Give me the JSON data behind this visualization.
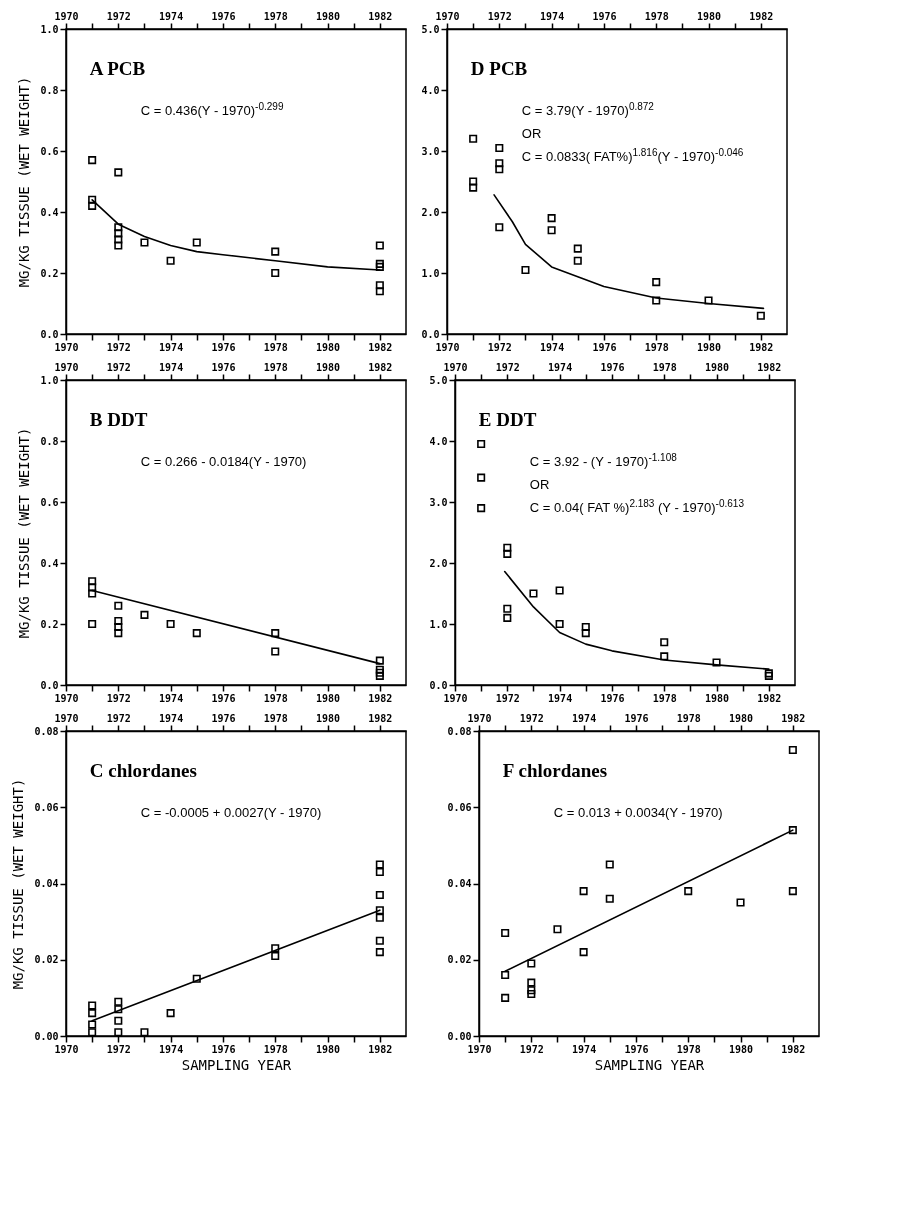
{
  "chart_data": [
    {
      "type": "scatter",
      "title": "A  PCB",
      "ylabel": "MG/KG TISSUE (WET WEIGHT)",
      "annotations": [
        "C = 0.436(Y - 1970)$^{-0.299}$"
      ],
      "xlim": [
        1970,
        1983
      ],
      "xticks": [
        1970,
        {
          "value": 1971,
          "label": null
        },
        1972,
        {
          "value": 1973,
          "label": null
        },
        1974,
        {
          "value": 1975,
          "label": null
        },
        1976,
        {
          "value": 1977,
          "label": null
        },
        1978,
        {
          "value": 1979,
          "label": null
        },
        1980,
        {
          "value": 1981,
          "label": null
        },
        1982
      ],
      "x2lim": [
        1970,
        1983
      ],
      "x2ticks": [
        1970,
        {
          "value": 1971,
          "label": null
        },
        1972,
        {
          "value": 1973,
          "label": null
        },
        1974,
        {
          "value": 1975,
          "label": null
        },
        1976,
        {
          "value": 1977,
          "label": null
        },
        1978,
        {
          "value": 1979,
          "label": null
        },
        1980,
        {
          "value": 1981,
          "label": null
        },
        1982
      ],
      "ylim": [
        0,
        1
      ],
      "yticks": [
        {
          "value": 0,
          "label": "0.0"
        },
        0.2,
        0.4,
        0.6,
        0.8,
        {
          "value": 1,
          "label": "1.0"
        }
      ],
      "series": [
        {
          "marker": "square",
          "color": "#000000",
          "x": [
            1971,
            1971,
            1971,
            1972,
            1972,
            1972,
            1972,
            1972,
            1973,
            1974,
            1975,
            1978,
            1978,
            1982,
            1982,
            1982,
            1982,
            1982
          ],
          "values": [
            0.57,
            0.44,
            0.42,
            0.53,
            0.35,
            0.33,
            0.31,
            0.29,
            0.3,
            0.24,
            0.3,
            0.27,
            0.2,
            0.29,
            0.23,
            0.22,
            0.16,
            0.14
          ]
        },
        {
          "type": "line",
          "color": "#000000",
          "x": [
            1971,
            1972,
            1973,
            1974,
            1975,
            1976,
            1978,
            1980,
            1982
          ],
          "values": [
            0.44,
            0.36,
            0.32,
            0.29,
            0.27,
            0.26,
            0.24,
            0.22,
            0.21
          ]
        }
      ]
    },
    {
      "type": "scatter",
      "title": "D   PCB",
      "annotations": [
        "C = 3.79(Y - 1970)$^{0.872}$",
        "OR",
        "C = 0.0833( FAT%)$^{1.816}$(Y - 1970)$^{-0.046}$"
      ],
      "xlim": [
        1970,
        1983
      ],
      "xticks": [
        1970,
        {
          "value": 1971,
          "label": null
        },
        1972,
        {
          "value": 1973,
          "label": null
        },
        1974,
        {
          "value": 1975,
          "label": null
        },
        1976,
        {
          "value": 1977,
          "label": null
        },
        1978,
        {
          "value": 1979,
          "label": null
        },
        1980,
        {
          "value": 1981,
          "label": null
        },
        1982
      ],
      "x2lim": [
        1970,
        1983
      ],
      "x2ticks": [
        1970,
        {
          "value": 1971,
          "label": null
        },
        1972,
        {
          "value": 1973,
          "label": null
        },
        1974,
        {
          "value": 1975,
          "label": null
        },
        1976,
        {
          "value": 1977,
          "label": null
        },
        1978,
        {
          "value": 1979,
          "label": null
        },
        1980,
        {
          "value": 1981,
          "label": null
        },
        1982
      ],
      "ylim": [
        0,
        5
      ],
      "yticks": [
        {
          "value": 0,
          "label": "0.0"
        },
        {
          "value": 1,
          "label": "1.0"
        },
        {
          "value": 2,
          "label": "2.0"
        },
        {
          "value": 3,
          "label": "3.0"
        },
        {
          "value": 4,
          "label": "4.0"
        },
        {
          "value": 5,
          "label": "5.0"
        }
      ],
      "series": [
        {
          "marker": "square",
          "color": "#000000",
          "x": [
            1971,
            1971,
            1971,
            1972,
            1972,
            1972,
            1972,
            1973,
            1974,
            1974,
            1975,
            1975,
            1978,
            1978,
            1980,
            1982
          ],
          "values": [
            3.2,
            2.5,
            2.4,
            3.05,
            2.8,
            2.7,
            1.75,
            1.05,
            1.9,
            1.7,
            1.4,
            1.2,
            0.85,
            0.55,
            0.55,
            0.3
          ]
        },
        {
          "type": "line",
          "color": "#000000",
          "x": [
            1971.8,
            1972.5,
            1973,
            1974,
            1975,
            1976,
            1978,
            1980,
            1982.1
          ],
          "values": [
            2.28,
            1.84,
            1.47,
            1.1,
            0.94,
            0.78,
            0.59,
            0.5,
            0.42
          ]
        }
      ]
    },
    {
      "type": "scatter",
      "title": "B   DDT",
      "ylabel": "MG/KG TISSUE (WET WEIGHT)",
      "annotations": [
        "C = 0.266 - 0.0184(Y - 1970)"
      ],
      "xlim": [
        1970,
        1983
      ],
      "xticks": [
        1970,
        {
          "value": 1971,
          "label": null
        },
        1972,
        {
          "value": 1973,
          "label": null
        },
        1974,
        {
          "value": 1975,
          "label": null
        },
        1976,
        {
          "value": 1977,
          "label": null
        },
        1978,
        {
          "value": 1979,
          "label": null
        },
        1980,
        {
          "value": 1981,
          "label": null
        },
        1982
      ],
      "x2lim": [
        1970,
        1983
      ],
      "x2ticks": [
        1970,
        {
          "value": 1971,
          "label": null
        },
        1972,
        {
          "value": 1973,
          "label": null
        },
        1974,
        {
          "value": 1975,
          "label": null
        },
        1976,
        {
          "value": 1977,
          "label": null
        },
        1978,
        {
          "value": 1979,
          "label": null
        },
        1980,
        {
          "value": 1981,
          "label": null
        },
        1982
      ],
      "ylim": [
        0,
        1
      ],
      "yticks": [
        {
          "value": 0,
          "label": "0.0"
        },
        0.2,
        0.4,
        0.6,
        0.8,
        {
          "value": 1,
          "label": "1.0"
        }
      ],
      "series": [
        {
          "marker": "square",
          "color": "#000000",
          "x": [
            1971,
            1971,
            1971,
            1971,
            1972,
            1972,
            1972,
            1972,
            1973,
            1974,
            1975,
            1978,
            1978,
            1982,
            1982,
            1982,
            1982
          ],
          "values": [
            0.34,
            0.32,
            0.3,
            0.2,
            0.26,
            0.21,
            0.19,
            0.17,
            0.23,
            0.2,
            0.17,
            0.17,
            0.11,
            0.08,
            0.05,
            0.04,
            0.03
          ]
        },
        {
          "type": "line",
          "color": "#000000",
          "x": [
            1971,
            1982
          ],
          "values": [
            0.31,
            0.07
          ]
        }
      ]
    },
    {
      "type": "scatter",
      "title": "E   DDT",
      "annotations": [
        "C = 3.92 - (Y - 1970)$^{-1.108}$",
        "OR",
        "C = 0.04( FAT %)$^{2.183}$ (Y - 1970)$^{-0.613}$"
      ],
      "xlim": [
        1970,
        1983
      ],
      "xticks": [
        1970,
        {
          "value": 1971,
          "label": null
        },
        1972,
        {
          "value": 1973,
          "label": null
        },
        1974,
        {
          "value": 1975,
          "label": null
        },
        1976,
        {
          "value": 1977,
          "label": null
        },
        1978,
        {
          "value": 1979,
          "label": null
        },
        1980,
        {
          "value": 1981,
          "label": null
        },
        1982
      ],
      "x2lim": [
        1970,
        1983
      ],
      "x2ticks": [
        1970,
        {
          "value": 1971,
          "label": null
        },
        1972,
        {
          "value": 1973,
          "label": null
        },
        1974,
        {
          "value": 1975,
          "label": null
        },
        1976,
        {
          "value": 1977,
          "label": null
        },
        1978,
        {
          "value": 1979,
          "label": null
        },
        1980,
        {
          "value": 1981,
          "label": null
        },
        1982
      ],
      "ylim": [
        0,
        5
      ],
      "yticks": [
        {
          "value": 0,
          "label": "0.0"
        },
        {
          "value": 1,
          "label": "1.0"
        },
        {
          "value": 2,
          "label": "2.0"
        },
        {
          "value": 3,
          "label": "3.0"
        },
        {
          "value": 4,
          "label": "4.0"
        },
        {
          "value": 5,
          "label": "5.0"
        }
      ],
      "series": [
        {
          "marker": "square",
          "color": "#000000",
          "x": [
            1971,
            1971,
            1971,
            1972,
            1972,
            1972,
            1972,
            1973,
            1974,
            1974,
            1975,
            1975,
            1978,
            1978,
            1980,
            1982,
            1982
          ],
          "values": [
            3.95,
            3.4,
            2.9,
            2.25,
            2.15,
            1.25,
            1.1,
            1.5,
            1.55,
            1.0,
            0.95,
            0.85,
            0.7,
            0.47,
            0.37,
            0.19,
            0.15
          ]
        },
        {
          "type": "line",
          "color": "#000000",
          "x": [
            1971.9,
            1973,
            1974,
            1975,
            1976,
            1978,
            1980,
            1982
          ],
          "values": [
            1.86,
            1.28,
            0.86,
            0.67,
            0.56,
            0.41,
            0.33,
            0.26
          ]
        }
      ]
    },
    {
      "type": "scatter",
      "title": "C  chlordanes",
      "ylabel": "MG/KG TISSUE (WET WEIGHT)",
      "xlabel": "SAMPLING YEAR",
      "annotations": [
        "C = -0.0005 + 0.0027(Y - 1970)"
      ],
      "xlim": [
        1970,
        1983
      ],
      "xticks": [
        1970,
        {
          "value": 1971,
          "label": null
        },
        1972,
        {
          "value": 1973,
          "label": null
        },
        1974,
        {
          "value": 1975,
          "label": null
        },
        1976,
        {
          "value": 1977,
          "label": null
        },
        1978,
        {
          "value": 1979,
          "label": null
        },
        1980,
        {
          "value": 1981,
          "label": null
        },
        1982
      ],
      "x2lim": [
        1970,
        1983
      ],
      "x2ticks": [
        1970,
        {
          "value": 1971,
          "label": null
        },
        1972,
        {
          "value": 1973,
          "label": null
        },
        1974,
        {
          "value": 1975,
          "label": null
        },
        1976,
        {
          "value": 1977,
          "label": null
        },
        1978,
        {
          "value": 1979,
          "label": null
        },
        1980,
        {
          "value": 1981,
          "label": null
        },
        1982
      ],
      "ylim": [
        0,
        0.08
      ],
      "yticks": [
        {
          "value": 0,
          "label": "0.00"
        },
        0.02,
        0.04,
        0.06,
        0.08
      ],
      "series": [
        {
          "marker": "square",
          "color": "#000000",
          "x": [
            1971,
            1971,
            1971,
            1971,
            1972,
            1972,
            1972,
            1972,
            1973,
            1974,
            1975,
            1978,
            1978,
            1982,
            1982,
            1982,
            1982,
            1982,
            1982,
            1982
          ],
          "values": [
            0.008,
            0.006,
            0.003,
            0.001,
            0.009,
            0.007,
            0.004,
            0.001,
            0.001,
            0.006,
            0.015,
            0.023,
            0.021,
            0.045,
            0.043,
            0.037,
            0.033,
            0.031,
            0.025,
            0.022
          ]
        },
        {
          "type": "line",
          "color": "#000000",
          "x": [
            1971,
            1982
          ],
          "values": [
            0.004,
            0.033
          ]
        }
      ]
    },
    {
      "type": "scatter",
      "title": "F  chlordanes",
      "xlabel": "SAMPLING YEAR",
      "annotations": [
        "C = 0.013 + 0.0034(Y - 1970)"
      ],
      "xlim": [
        1970,
        1983
      ],
      "xticks": [
        1970,
        {
          "value": 1971,
          "label": null
        },
        1972,
        {
          "value": 1973,
          "label": null
        },
        1974,
        {
          "value": 1975,
          "label": null
        },
        1976,
        {
          "value": 1977,
          "label": null
        },
        1978,
        {
          "value": 1979,
          "label": null
        },
        1980,
        {
          "value": 1981,
          "label": null
        },
        1982
      ],
      "x2lim": [
        1970,
        1983
      ],
      "x2ticks": [
        1970,
        {
          "value": 1971,
          "label": null
        },
        1972,
        {
          "value": 1973,
          "label": null
        },
        1974,
        {
          "value": 1975,
          "label": null
        },
        1976,
        {
          "value": 1977,
          "label": null
        },
        1978,
        {
          "value": 1979,
          "label": null
        },
        1980,
        {
          "value": 1981,
          "label": null
        },
        1982
      ],
      "ylim": [
        0,
        0.08
      ],
      "yticks": [
        {
          "value": 0,
          "label": "0.00"
        },
        0.02,
        0.04,
        0.06,
        0.08
      ],
      "series": [
        {
          "marker": "square",
          "color": "#000000",
          "x": [
            1971,
            1971,
            1971,
            1972,
            1972,
            1972,
            1972,
            1973,
            1974,
            1974,
            1975,
            1975,
            1978,
            1980,
            1982,
            1982,
            1982
          ],
          "values": [
            0.027,
            0.016,
            0.01,
            0.019,
            0.014,
            0.012,
            0.011,
            0.028,
            0.038,
            0.022,
            0.045,
            0.036,
            0.038,
            0.035,
            0.075,
            0.054,
            0.038
          ]
        },
        {
          "type": "line",
          "color": "#000000",
          "x": [
            1971,
            1982
          ],
          "values": [
            0.017,
            0.054
          ]
        }
      ]
    }
  ]
}
